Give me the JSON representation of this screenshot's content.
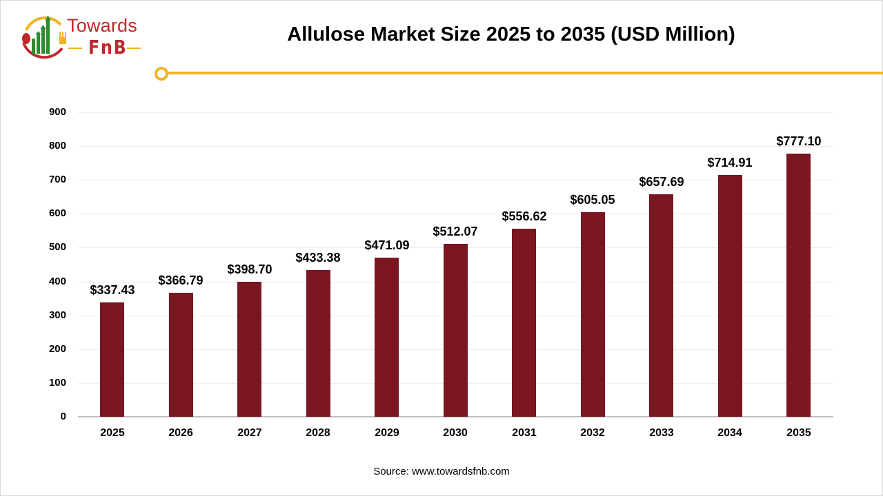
{
  "brand": {
    "name_line1": "Towards",
    "name_line2": "FnB",
    "colors": {
      "red": "#c0282d",
      "green": "#2e8b2e",
      "gold": "#f0b323"
    }
  },
  "header": {
    "title": "Allulose Market Size 2025 to 2035 (USD Million)"
  },
  "footer": {
    "source": "Source: www.towardsfnb.com"
  },
  "chart_data": {
    "type": "bar",
    "title": "Allulose Market Size 2025 to 2035 (USD Million)",
    "xlabel": "",
    "ylabel": "",
    "categories": [
      "2025",
      "2026",
      "2027",
      "2028",
      "2029",
      "2030",
      "2031",
      "2032",
      "2033",
      "2034",
      "2035"
    ],
    "values": [
      337.43,
      366.79,
      398.7,
      433.38,
      471.09,
      512.07,
      556.62,
      605.05,
      657.69,
      714.91,
      777.1
    ],
    "data_labels": [
      "$337.43",
      "$366.79",
      "$398.70",
      "$433.38",
      "$471.09",
      "$512.07",
      "$556.62",
      "$605.05",
      "$657.69",
      "$714.91",
      "$777.10"
    ],
    "yticks": [
      0,
      100,
      200,
      300,
      400,
      500,
      600,
      700,
      800,
      900
    ],
    "ylim": [
      0,
      900
    ],
    "grid": true,
    "legend": null,
    "bar_color": "#7a1621",
    "annotation": "Source: www.towardsfnb.com"
  }
}
